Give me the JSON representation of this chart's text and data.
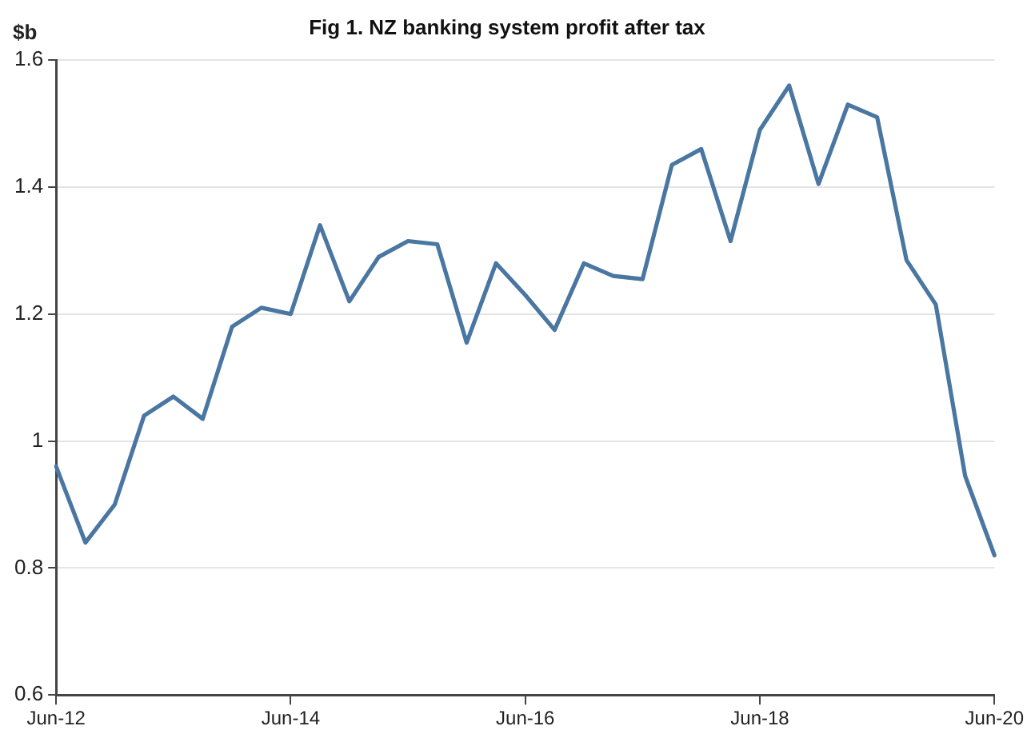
{
  "chart_data": {
    "type": "line",
    "title": "Fig 1. NZ banking system profit after tax",
    "ylabel": "$b",
    "categories": [
      "Jun-12",
      null,
      null,
      null,
      null,
      null,
      null,
      null,
      "Jun-14",
      null,
      null,
      null,
      null,
      null,
      null,
      null,
      "Jun-16",
      null,
      null,
      null,
      null,
      null,
      null,
      null,
      "Jun-18",
      null,
      null,
      null,
      null,
      null,
      null,
      null,
      "Jun-20"
    ],
    "series": [
      {
        "color": "#4a77a2",
        "values": [
          0.96,
          0.84,
          0.9,
          1.04,
          1.07,
          1.035,
          1.18,
          1.21,
          1.2,
          1.34,
          1.22,
          1.29,
          1.315,
          1.31,
          1.155,
          1.28,
          1.23,
          1.175,
          1.28,
          1.26,
          1.255,
          1.435,
          1.46,
          1.315,
          1.49,
          1.56,
          1.405,
          1.53,
          1.51,
          1.285,
          1.215,
          0.945,
          0.82
        ]
      }
    ],
    "ylim": [
      0.6,
      1.6
    ],
    "yticks": [
      0.6,
      0.8,
      1,
      1.2,
      1.4,
      1.6
    ],
    "grid": "y",
    "legend": false,
    "marker": "none",
    "line_style": "solid"
  }
}
